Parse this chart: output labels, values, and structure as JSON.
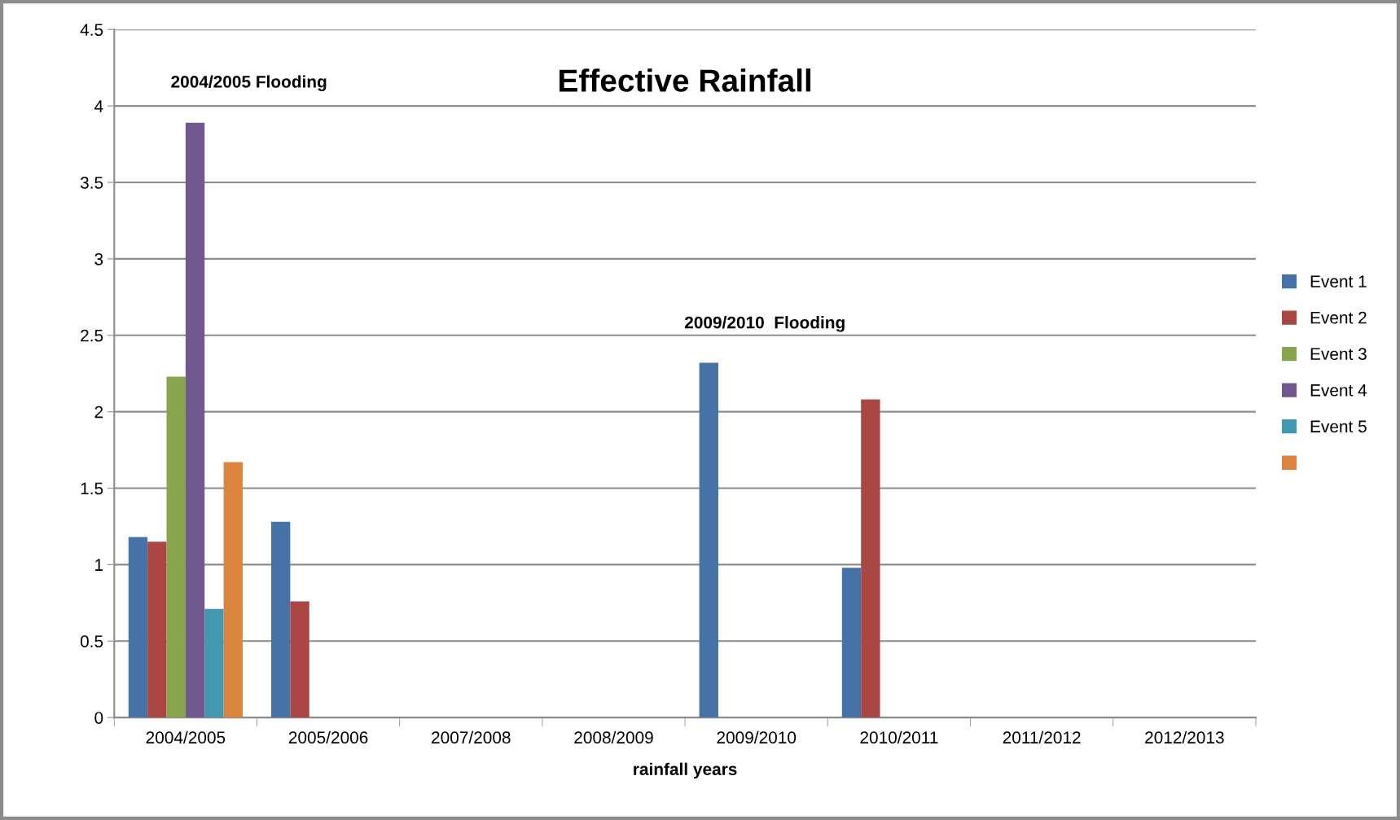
{
  "chart_data": {
    "type": "bar",
    "title": "Effective Rainfall",
    "xlabel": "rainfall years",
    "categories": [
      "2004/2005",
      "2005/2006",
      "2007/2008",
      "2008/2009",
      "2009/2010",
      "2010/2011",
      "2011/2012",
      "2012/2013"
    ],
    "series": [
      {
        "name": "Event 1",
        "color": "#4572a7",
        "values": [
          1.18,
          1.28,
          null,
          null,
          2.32,
          0.98,
          null,
          null
        ]
      },
      {
        "name": "Event 2",
        "color": "#aa4643",
        "values": [
          1.15,
          0.76,
          null,
          null,
          null,
          2.08,
          null,
          null
        ]
      },
      {
        "name": "Event 3",
        "color": "#89a54e",
        "values": [
          2.23,
          null,
          null,
          null,
          null,
          null,
          null,
          null
        ]
      },
      {
        "name": "Event 4",
        "color": "#71588f",
        "values": [
          3.89,
          null,
          null,
          null,
          null,
          null,
          null,
          null
        ]
      },
      {
        "name": "Event 5",
        "color": "#4198af",
        "values": [
          0.71,
          null,
          null,
          null,
          null,
          null,
          null,
          null
        ]
      },
      {
        "color": "#db843d",
        "values": [
          1.67,
          null,
          null,
          null,
          null,
          null,
          null,
          null
        ]
      }
    ],
    "ylim": [
      0,
      4.5
    ],
    "yticks": [
      0,
      0.5,
      1,
      1.5,
      2,
      2.5,
      3,
      3.5,
      4,
      4.5
    ],
    "grid": "y",
    "legend": "right",
    "annotations": [
      "2004/2005 Flooding",
      "2009/2010  Flooding"
    ]
  }
}
